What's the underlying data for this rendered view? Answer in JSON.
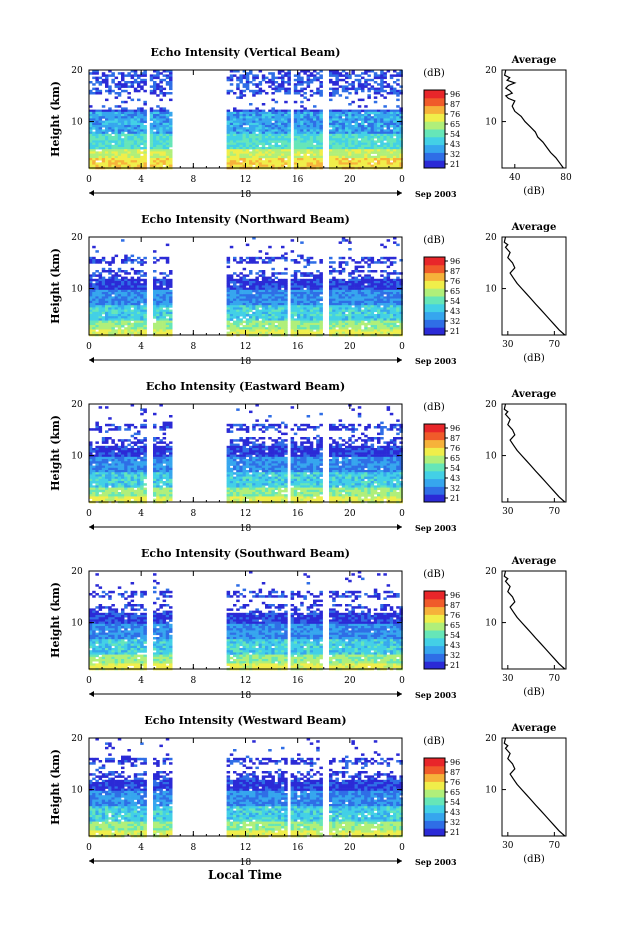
{
  "figure": {
    "x_axis_title": "Local Time"
  },
  "colorbar": {
    "unit_label": "(dB)",
    "colors": [
      "#2b2ad6",
      "#2f6ee6",
      "#36a6ee",
      "#43d0e6",
      "#66e6b8",
      "#b0ef7a",
      "#f0ee4a",
      "#f6b23a",
      "#f05b2a",
      "#e8262a"
    ]
  },
  "chart_data": [
    {
      "type": "heatmap",
      "title": "Echo Intensity (Vertical Beam)",
      "xlabel": "",
      "ylabel": "Height (km)",
      "x_ticks": [
        "0",
        "4",
        "8",
        "12",
        "16",
        "20",
        "0"
      ],
      "y_ticks": [
        "20",
        "10"
      ],
      "date_label": "18",
      "date_suffix": "Sep 2003",
      "colorbar_ticks": [
        "96",
        "87",
        "76",
        "65",
        "54",
        "43",
        "32",
        "21"
      ],
      "data_gaps_hours": [
        [
          4.3,
          4.6
        ],
        [
          6.3,
          10.4
        ],
        [
          15.3,
          15.6
        ],
        [
          17.7,
          18.2
        ]
      ],
      "xlim": [
        0,
        24
      ],
      "ylim": [
        1,
        20
      ],
      "average_profile": {
        "title": "Average",
        "xlabel": "(dB)",
        "x_ticks": [
          "40",
          "80"
        ],
        "y_ticks": [
          "20",
          "10"
        ],
        "xlim": [
          30,
          80
        ],
        "points": [
          [
            33,
            20
          ],
          [
            32,
            19
          ],
          [
            36,
            18.5
          ],
          [
            34,
            18
          ],
          [
            40,
            17.5
          ],
          [
            35,
            17
          ],
          [
            33,
            16.5
          ],
          [
            36,
            16
          ],
          [
            38,
            15.5
          ],
          [
            33,
            15
          ],
          [
            35,
            14.5
          ],
          [
            40,
            14
          ],
          [
            38,
            13
          ],
          [
            40,
            12
          ],
          [
            45,
            11
          ],
          [
            48,
            10
          ],
          [
            52,
            9
          ],
          [
            56,
            8
          ],
          [
            58,
            7
          ],
          [
            62,
            6
          ],
          [
            65,
            5
          ],
          [
            68,
            4
          ],
          [
            72,
            3
          ],
          [
            75,
            2
          ],
          [
            78,
            1
          ]
        ]
      }
    },
    {
      "type": "heatmap",
      "title": "Echo Intensity (Northward Beam)",
      "xlabel": "",
      "ylabel": "Height (km)",
      "x_ticks": [
        "0",
        "4",
        "8",
        "12",
        "16",
        "20",
        "0"
      ],
      "y_ticks": [
        "20",
        "10"
      ],
      "date_label": "18",
      "date_suffix": "Sep 2003",
      "colorbar_ticks": [
        "96",
        "87",
        "76",
        "65",
        "54",
        "43",
        "32",
        "21"
      ],
      "data_gaps_hours": [
        [
          4.3,
          4.9
        ],
        [
          6.3,
          10.4
        ],
        [
          15.1,
          15.4
        ],
        [
          17.7,
          18.2
        ]
      ],
      "xlim": [
        0,
        24
      ],
      "ylim": [
        1,
        20
      ],
      "average_profile": {
        "title": "Average",
        "xlabel": "(dB)",
        "x_ticks": [
          "30",
          "70"
        ],
        "y_ticks": [
          "20",
          "10"
        ],
        "xlim": [
          25,
          80
        ],
        "points": [
          [
            28,
            20
          ],
          [
            27,
            19
          ],
          [
            30,
            18.5
          ],
          [
            28,
            18
          ],
          [
            32,
            17
          ],
          [
            30,
            16
          ],
          [
            34,
            15
          ],
          [
            36,
            14
          ],
          [
            32,
            13
          ],
          [
            35,
            12
          ],
          [
            38,
            11
          ],
          [
            42,
            10
          ],
          [
            46,
            9
          ],
          [
            50,
            8
          ],
          [
            54,
            7
          ],
          [
            58,
            6
          ],
          [
            62,
            5
          ],
          [
            66,
            4
          ],
          [
            70,
            3
          ],
          [
            74,
            2
          ],
          [
            79,
            1
          ]
        ]
      }
    },
    {
      "type": "heatmap",
      "title": "Echo Intensity (Eastward Beam)",
      "xlabel": "",
      "ylabel": "Height (km)",
      "x_ticks": [
        "0",
        "4",
        "8",
        "12",
        "16",
        "20",
        "0"
      ],
      "y_ticks": [
        "20",
        "10"
      ],
      "date_label": "18",
      "date_suffix": "Sep 2003",
      "colorbar_ticks": [
        "96",
        "87",
        "76",
        "65",
        "54",
        "43",
        "32",
        "21"
      ],
      "data_gaps_hours": [
        [
          4.3,
          4.9
        ],
        [
          6.3,
          10.4
        ],
        [
          15.1,
          15.4
        ],
        [
          17.7,
          18.2
        ]
      ],
      "xlim": [
        0,
        24
      ],
      "ylim": [
        1,
        20
      ],
      "average_profile": {
        "title": "Average",
        "xlabel": "",
        "x_ticks": [
          "30",
          "70"
        ],
        "y_ticks": [
          "20",
          "10"
        ],
        "xlim": [
          25,
          80
        ],
        "points": [
          [
            28,
            20
          ],
          [
            27,
            19
          ],
          [
            30,
            18.5
          ],
          [
            28,
            18
          ],
          [
            32,
            17
          ],
          [
            30,
            16
          ],
          [
            34,
            15
          ],
          [
            36,
            14
          ],
          [
            32,
            13
          ],
          [
            35,
            12
          ],
          [
            38,
            11
          ],
          [
            42,
            10
          ],
          [
            46,
            9
          ],
          [
            50,
            8
          ],
          [
            54,
            7
          ],
          [
            58,
            6
          ],
          [
            62,
            5
          ],
          [
            66,
            4
          ],
          [
            70,
            3
          ],
          [
            74,
            2
          ],
          [
            79,
            1
          ]
        ]
      }
    },
    {
      "type": "heatmap",
      "title": "Echo Intensity (Southward Beam)",
      "xlabel": "",
      "ylabel": "Height (km)",
      "x_ticks": [
        "0",
        "4",
        "8",
        "12",
        "16",
        "20",
        "0"
      ],
      "y_ticks": [
        "20",
        "10"
      ],
      "date_label": "18",
      "date_suffix": "Sep 2003",
      "colorbar_ticks": [
        "96",
        "87",
        "76",
        "65",
        "54",
        "43",
        "32",
        "21"
      ],
      "data_gaps_hours": [
        [
          4.3,
          4.9
        ],
        [
          6.3,
          10.4
        ],
        [
          15.1,
          15.4
        ],
        [
          17.7,
          18.2
        ]
      ],
      "xlim": [
        0,
        24
      ],
      "ylim": [
        1,
        20
      ],
      "average_profile": {
        "title": "Average",
        "xlabel": "(dB)",
        "x_ticks": [
          "30",
          "70"
        ],
        "y_ticks": [
          "20",
          "10"
        ],
        "xlim": [
          25,
          80
        ],
        "points": [
          [
            28,
            20
          ],
          [
            27,
            19
          ],
          [
            30,
            18.5
          ],
          [
            28,
            18
          ],
          [
            32,
            17
          ],
          [
            30,
            16
          ],
          [
            34,
            15
          ],
          [
            36,
            14
          ],
          [
            32,
            13
          ],
          [
            35,
            12
          ],
          [
            38,
            11
          ],
          [
            42,
            10
          ],
          [
            46,
            9
          ],
          [
            50,
            8
          ],
          [
            54,
            7
          ],
          [
            58,
            6
          ],
          [
            62,
            5
          ],
          [
            66,
            4
          ],
          [
            70,
            3
          ],
          [
            74,
            2
          ],
          [
            79,
            1
          ]
        ]
      }
    },
    {
      "type": "heatmap",
      "title": "Echo Intensity (Westward Beam)",
      "xlabel": "",
      "ylabel": "Height (km)",
      "x_ticks": [
        "0",
        "4",
        "8",
        "12",
        "16",
        "20",
        "0"
      ],
      "y_ticks": [
        "20",
        "10"
      ],
      "date_label": "18",
      "date_suffix": "Sep 2003",
      "colorbar_ticks": [
        "96",
        "87",
        "76",
        "65",
        "54",
        "43",
        "32",
        "21"
      ],
      "data_gaps_hours": [
        [
          4.3,
          4.9
        ],
        [
          6.3,
          10.4
        ],
        [
          15.1,
          15.4
        ],
        [
          17.7,
          18.2
        ]
      ],
      "xlim": [
        0,
        24
      ],
      "ylim": [
        1,
        20
      ],
      "average_profile": {
        "title": "Average",
        "xlabel": "(dB)",
        "x_ticks": [
          "30",
          "70"
        ],
        "y_ticks": [
          "20",
          "10"
        ],
        "xlim": [
          25,
          80
        ],
        "points": [
          [
            28,
            20
          ],
          [
            27,
            19
          ],
          [
            30,
            18.5
          ],
          [
            28,
            18
          ],
          [
            32,
            17
          ],
          [
            30,
            16
          ],
          [
            34,
            15
          ],
          [
            36,
            14
          ],
          [
            32,
            13
          ],
          [
            35,
            12
          ],
          [
            38,
            11
          ],
          [
            42,
            10
          ],
          [
            46,
            9
          ],
          [
            50,
            8
          ],
          [
            54,
            7
          ],
          [
            58,
            6
          ],
          [
            62,
            5
          ],
          [
            66,
            4
          ],
          [
            70,
            3
          ],
          [
            74,
            2
          ],
          [
            79,
            1
          ]
        ]
      }
    }
  ]
}
